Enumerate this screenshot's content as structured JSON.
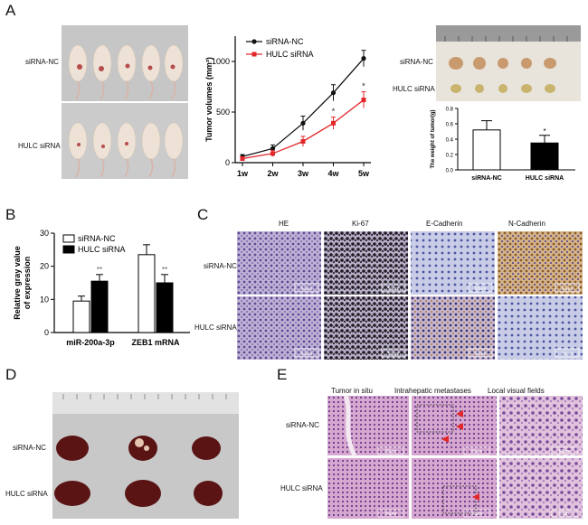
{
  "panels": {
    "A": "A",
    "B": "B",
    "C": "C",
    "D": "D",
    "E": "E"
  },
  "panelA": {
    "row_labels": [
      "siRNA-NC",
      "HULC siRNA"
    ],
    "tumor_row_labels": [
      "siRNA-NC",
      "HULC siRNA"
    ]
  },
  "panelC": {
    "columns": [
      "HE",
      "Ki-67",
      "E-Cadherin",
      "N-Cadherin"
    ],
    "rows": [
      "siRNA-NC",
      "HULC siRNA"
    ],
    "scale_text": "50μm"
  },
  "panelD": {
    "rows": [
      "siRNA-NC",
      "HULC siRNA"
    ]
  },
  "panelE": {
    "columns": [
      "Tumor in situ",
      "Intrahepatic metastases",
      "Local visual fields"
    ],
    "rows": [
      "siRNA-NC",
      "HULC siRNA"
    ],
    "scale_text": "50μm"
  },
  "colors": {
    "nc": "#111111",
    "hulc": "#e2272a"
  },
  "chart_data": [
    {
      "id": "tumor-volume",
      "type": "line",
      "ylabel": "Tumor volumes (mm³)",
      "xlabel": "",
      "categories": [
        "1w",
        "2w",
        "3w",
        "4w",
        "5w"
      ],
      "ylim": [
        0,
        1250
      ],
      "yticks": [
        0,
        500,
        1000
      ],
      "series": [
        {
          "name": "siRNA-NC",
          "values": [
            60,
            140,
            390,
            690,
            1030
          ],
          "err": [
            20,
            35,
            70,
            80,
            80
          ],
          "color": "#111111",
          "marker": "circle"
        },
        {
          "name": "HULC siRNA",
          "values": [
            40,
            90,
            210,
            390,
            620
          ],
          "err": [
            15,
            30,
            50,
            60,
            80
          ],
          "color": "#e2272a",
          "marker": "square"
        }
      ],
      "annotations": [
        {
          "x": "4w",
          "text": "*"
        },
        {
          "x": "5w",
          "text": "*"
        }
      ]
    },
    {
      "id": "tumor-weight",
      "type": "bar",
      "ylabel": "The weight of tumor(g)",
      "categories": [
        "siRNA-NC",
        "HULC siRNA"
      ],
      "values": [
        0.52,
        0.35
      ],
      "err": [
        0.12,
        0.1
      ],
      "ylim": [
        0,
        0.8
      ],
      "yticks": [
        0.0,
        0.2,
        0.4,
        0.6,
        0.8
      ],
      "fills": [
        "#ffffff",
        "#000000"
      ],
      "annotations": [
        {
          "x": "HULC siRNA",
          "text": "*"
        }
      ]
    },
    {
      "id": "gray-value",
      "type": "bar",
      "ylabel": "Relative gray value of expression",
      "categories": [
        "miR-200a-3p",
        "ZEB1 mRNA"
      ],
      "ylim": [
        0,
        30
      ],
      "yticks": [
        0,
        10,
        20,
        30
      ],
      "series": [
        {
          "name": "siRNA-NC",
          "values": [
            9.5,
            23.5
          ],
          "err": [
            1.5,
            3.0
          ],
          "fill": "#ffffff"
        },
        {
          "name": "HULC siRNA",
          "values": [
            15.5,
            15.0
          ],
          "err": [
            2.0,
            2.5
          ],
          "fill": "#000000"
        }
      ],
      "annotations": [
        {
          "x": "miR-200a-3p",
          "text": "**"
        },
        {
          "x": "ZEB1 mRNA",
          "text": "**"
        }
      ]
    }
  ]
}
